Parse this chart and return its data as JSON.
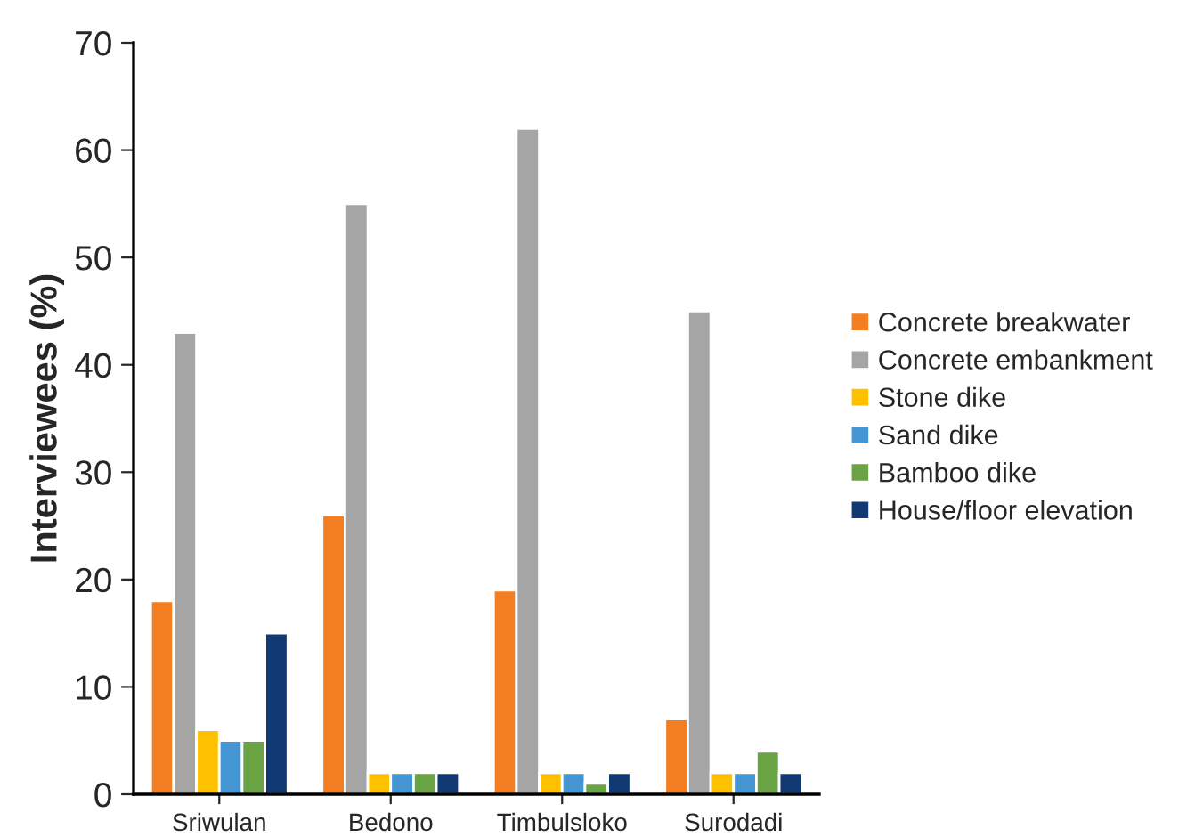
{
  "chart_data": {
    "type": "bar",
    "ylabel": "Interviewees (%)",
    "categories": [
      "Sriwulan",
      "Bedono",
      "Timbulsloko",
      "Surodadi"
    ],
    "series": [
      {
        "name": "Concrete breakwater",
        "color": "#f47e22",
        "values": [
          18,
          26,
          19,
          7
        ]
      },
      {
        "name": "Concrete embankment",
        "color": "#a5a5a5",
        "values": [
          43,
          55,
          62,
          45
        ]
      },
      {
        "name": "Stone dike",
        "color": "#ffc000",
        "values": [
          6,
          2,
          2,
          2
        ]
      },
      {
        "name": "Sand dike",
        "color": "#4395d3",
        "values": [
          5,
          2,
          2,
          2
        ]
      },
      {
        "name": "Bamboo dike",
        "color": "#6aa343",
        "values": [
          5,
          2,
          1,
          4
        ]
      },
      {
        "name": "House/floor elevation",
        "color": "#113a75",
        "values": [
          15,
          2,
          2,
          2
        ]
      }
    ],
    "ylim": [
      0,
      70
    ],
    "yticks": [
      0,
      10,
      20,
      30,
      40,
      50,
      60,
      70
    ],
    "grid": false,
    "legend": "right"
  }
}
